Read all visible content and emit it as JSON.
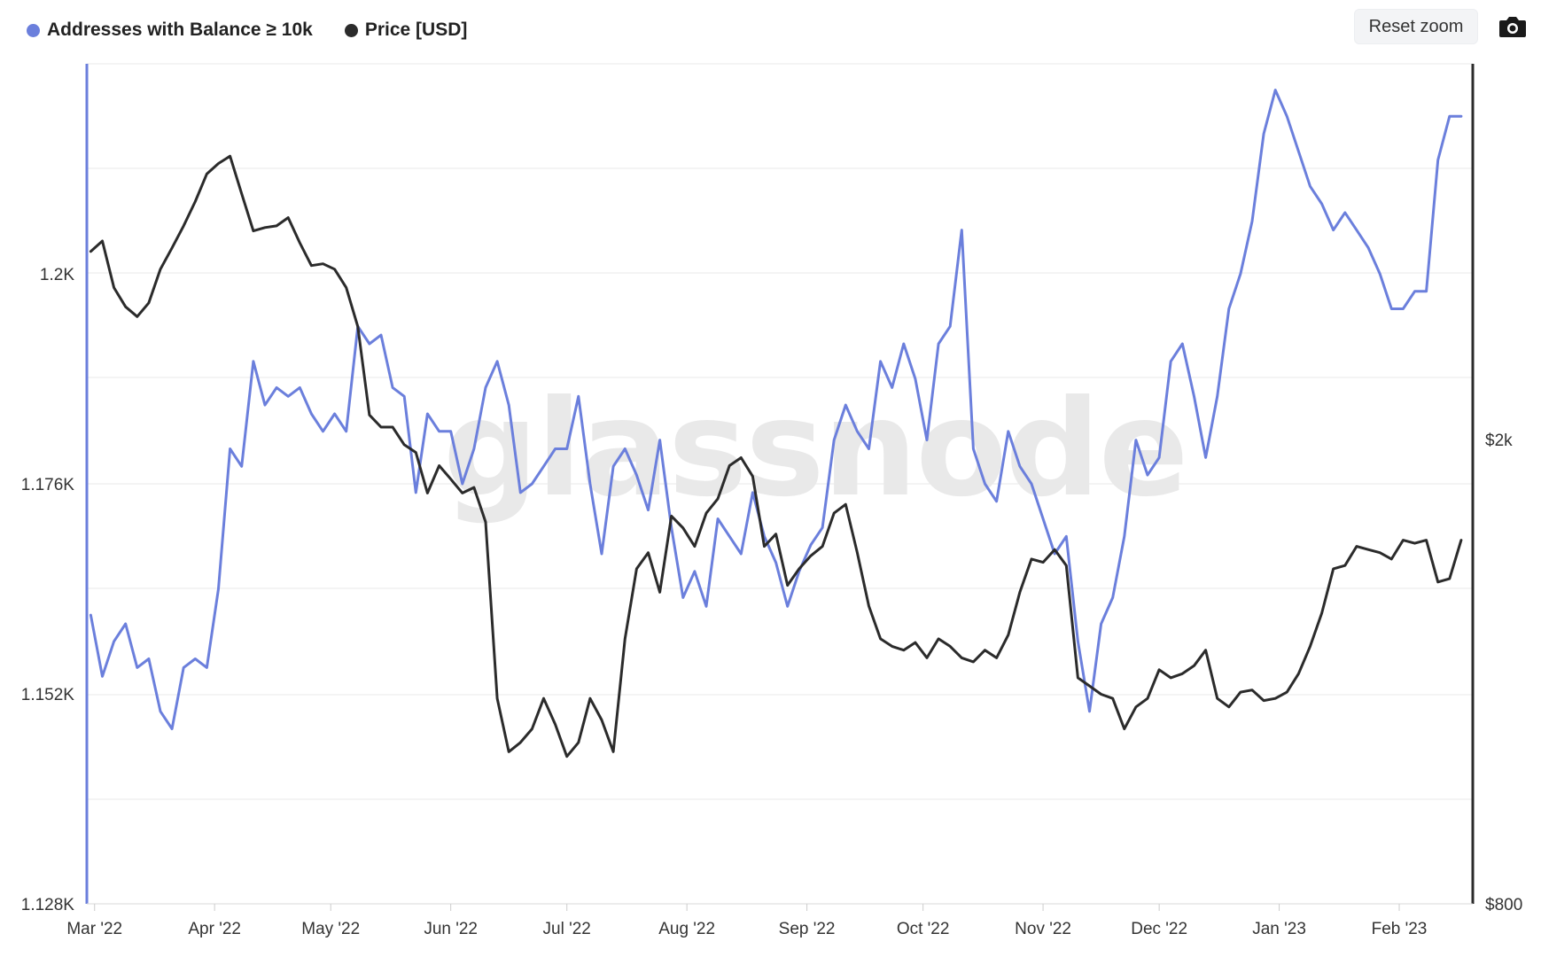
{
  "legend": {
    "series1_label": "Addresses with Balance ≥ 10k",
    "series2_label": "Price [USD]"
  },
  "toolbar": {
    "reset_zoom_label": "Reset zoom",
    "camera_icon": "camera-icon"
  },
  "watermark": "glassnode",
  "colors": {
    "addresses": "#6b7fdc",
    "price": "#2b2b2b",
    "grid": "#e9e9e9",
    "left_axis": "#6b7fdc",
    "right_axis": "#2b2b2b"
  },
  "chart_data": {
    "type": "line",
    "x_axis": {
      "ticks": [
        "Mar '22",
        "Apr '22",
        "May '22",
        "Jun '22",
        "Jul '22",
        "Aug '22",
        "Sep '22",
        "Oct '22",
        "Nov '22",
        "Dec '22",
        "Jan '23",
        "Feb '23"
      ],
      "range": [
        "2022-02-27",
        "2023-02-20"
      ]
    },
    "y_left": {
      "ticks": [
        "1.128K",
        "1.152K",
        "1.176K",
        "1.2K"
      ],
      "tick_values": [
        1128,
        1152,
        1176,
        1200
      ],
      "range": [
        1128,
        1224
      ]
    },
    "y_right": {
      "ticks": [
        "$800",
        "$2k"
      ],
      "tick_values": [
        800,
        2000
      ],
      "scale": "log",
      "range": [
        800,
        4200
      ]
    },
    "series": [
      {
        "name": "Addresses with Balance ≥ 10k",
        "axis": "left",
        "points": [
          [
            "2022-02-28",
            1161
          ],
          [
            "2022-03-03",
            1154
          ],
          [
            "2022-03-06",
            1158
          ],
          [
            "2022-03-09",
            1160
          ],
          [
            "2022-03-12",
            1155
          ],
          [
            "2022-03-15",
            1156
          ],
          [
            "2022-03-18",
            1150
          ],
          [
            "2022-03-21",
            1148
          ],
          [
            "2022-03-24",
            1155
          ],
          [
            "2022-03-27",
            1156
          ],
          [
            "2022-03-30",
            1155
          ],
          [
            "2022-04-02",
            1164
          ],
          [
            "2022-04-05",
            1180
          ],
          [
            "2022-04-08",
            1178
          ],
          [
            "2022-04-11",
            1190
          ],
          [
            "2022-04-14",
            1185
          ],
          [
            "2022-04-17",
            1187
          ],
          [
            "2022-04-20",
            1186
          ],
          [
            "2022-04-23",
            1187
          ],
          [
            "2022-04-26",
            1184
          ],
          [
            "2022-04-29",
            1182
          ],
          [
            "2022-05-02",
            1184
          ],
          [
            "2022-05-05",
            1182
          ],
          [
            "2022-05-08",
            1194
          ],
          [
            "2022-05-11",
            1192
          ],
          [
            "2022-05-14",
            1193
          ],
          [
            "2022-05-17",
            1187
          ],
          [
            "2022-05-20",
            1186
          ],
          [
            "2022-05-23",
            1175
          ],
          [
            "2022-05-26",
            1184
          ],
          [
            "2022-05-29",
            1182
          ],
          [
            "2022-06-01",
            1182
          ],
          [
            "2022-06-04",
            1176
          ],
          [
            "2022-06-07",
            1180
          ],
          [
            "2022-06-10",
            1187
          ],
          [
            "2022-06-13",
            1190
          ],
          [
            "2022-06-16",
            1185
          ],
          [
            "2022-06-19",
            1175
          ],
          [
            "2022-06-22",
            1176
          ],
          [
            "2022-06-25",
            1178
          ],
          [
            "2022-06-28",
            1180
          ],
          [
            "2022-07-01",
            1180
          ],
          [
            "2022-07-04",
            1186
          ],
          [
            "2022-07-07",
            1176
          ],
          [
            "2022-07-10",
            1168
          ],
          [
            "2022-07-13",
            1178
          ],
          [
            "2022-07-16",
            1180
          ],
          [
            "2022-07-19",
            1177
          ],
          [
            "2022-07-22",
            1173
          ],
          [
            "2022-07-25",
            1181
          ],
          [
            "2022-07-28",
            1171
          ],
          [
            "2022-07-31",
            1163
          ],
          [
            "2022-08-03",
            1166
          ],
          [
            "2022-08-06",
            1162
          ],
          [
            "2022-08-09",
            1172
          ],
          [
            "2022-08-12",
            1170
          ],
          [
            "2022-08-15",
            1168
          ],
          [
            "2022-08-18",
            1175
          ],
          [
            "2022-08-21",
            1170
          ],
          [
            "2022-08-24",
            1167
          ],
          [
            "2022-08-27",
            1162
          ],
          [
            "2022-08-30",
            1166
          ],
          [
            "2022-09-02",
            1169
          ],
          [
            "2022-09-05",
            1171
          ],
          [
            "2022-09-08",
            1181
          ],
          [
            "2022-09-11",
            1185
          ],
          [
            "2022-09-14",
            1182
          ],
          [
            "2022-09-17",
            1180
          ],
          [
            "2022-09-20",
            1190
          ],
          [
            "2022-09-23",
            1187
          ],
          [
            "2022-09-26",
            1192
          ],
          [
            "2022-09-29",
            1188
          ],
          [
            "2022-10-02",
            1181
          ],
          [
            "2022-10-05",
            1192
          ],
          [
            "2022-10-08",
            1194
          ],
          [
            "2022-10-11",
            1205
          ],
          [
            "2022-10-14",
            1180
          ],
          [
            "2022-10-17",
            1176
          ],
          [
            "2022-10-20",
            1174
          ],
          [
            "2022-10-23",
            1182
          ],
          [
            "2022-10-26",
            1178
          ],
          [
            "2022-10-29",
            1176
          ],
          [
            "2022-11-01",
            1172
          ],
          [
            "2022-11-04",
            1168
          ],
          [
            "2022-11-07",
            1170
          ],
          [
            "2022-11-10",
            1158
          ],
          [
            "2022-11-13",
            1150
          ],
          [
            "2022-11-16",
            1160
          ],
          [
            "2022-11-19",
            1163
          ],
          [
            "2022-11-22",
            1170
          ],
          [
            "2022-11-25",
            1181
          ],
          [
            "2022-11-28",
            1177
          ],
          [
            "2022-12-01",
            1179
          ],
          [
            "2022-12-04",
            1190
          ],
          [
            "2022-12-07",
            1192
          ],
          [
            "2022-12-10",
            1186
          ],
          [
            "2022-12-13",
            1179
          ],
          [
            "2022-12-16",
            1186
          ],
          [
            "2022-12-19",
            1196
          ],
          [
            "2022-12-22",
            1200
          ],
          [
            "2022-12-25",
            1206
          ],
          [
            "2022-12-28",
            1216
          ],
          [
            "2022-12-31",
            1221
          ],
          [
            "2023-01-03",
            1218
          ],
          [
            "2023-01-06",
            1214
          ],
          [
            "2023-01-09",
            1210
          ],
          [
            "2023-01-12",
            1208
          ],
          [
            "2023-01-15",
            1205
          ],
          [
            "2023-01-18",
            1207
          ],
          [
            "2023-01-21",
            1205
          ],
          [
            "2023-01-24",
            1203
          ],
          [
            "2023-01-27",
            1200
          ],
          [
            "2023-01-30",
            1196
          ],
          [
            "2023-02-02",
            1196
          ],
          [
            "2023-02-05",
            1198
          ],
          [
            "2023-02-08",
            1198
          ],
          [
            "2023-02-11",
            1213
          ],
          [
            "2023-02-14",
            1218
          ],
          [
            "2023-02-17",
            1218
          ]
        ]
      },
      {
        "name": "Price [USD]",
        "axis": "right",
        "points": [
          [
            "2022-02-28",
            2900
          ],
          [
            "2022-03-03",
            2960
          ],
          [
            "2022-03-06",
            2700
          ],
          [
            "2022-03-09",
            2600
          ],
          [
            "2022-03-12",
            2550
          ],
          [
            "2022-03-15",
            2620
          ],
          [
            "2022-03-18",
            2800
          ],
          [
            "2022-03-21",
            2920
          ],
          [
            "2022-03-24",
            3050
          ],
          [
            "2022-03-27",
            3200
          ],
          [
            "2022-03-30",
            3380
          ],
          [
            "2022-04-02",
            3450
          ],
          [
            "2022-04-05",
            3500
          ],
          [
            "2022-04-08",
            3250
          ],
          [
            "2022-04-11",
            3020
          ],
          [
            "2022-04-14",
            3040
          ],
          [
            "2022-04-17",
            3050
          ],
          [
            "2022-04-20",
            3100
          ],
          [
            "2022-04-23",
            2950
          ],
          [
            "2022-04-26",
            2820
          ],
          [
            "2022-04-29",
            2830
          ],
          [
            "2022-05-02",
            2800
          ],
          [
            "2022-05-05",
            2700
          ],
          [
            "2022-05-08",
            2500
          ],
          [
            "2022-05-11",
            2100
          ],
          [
            "2022-05-14",
            2050
          ],
          [
            "2022-05-17",
            2050
          ],
          [
            "2022-05-20",
            1980
          ],
          [
            "2022-05-23",
            1950
          ],
          [
            "2022-05-26",
            1800
          ],
          [
            "2022-05-29",
            1900
          ],
          [
            "2022-06-01",
            1850
          ],
          [
            "2022-06-04",
            1800
          ],
          [
            "2022-06-07",
            1820
          ],
          [
            "2022-06-10",
            1700
          ],
          [
            "2022-06-13",
            1200
          ],
          [
            "2022-06-16",
            1080
          ],
          [
            "2022-06-19",
            1100
          ],
          [
            "2022-06-22",
            1130
          ],
          [
            "2022-06-25",
            1200
          ],
          [
            "2022-06-28",
            1140
          ],
          [
            "2022-07-01",
            1070
          ],
          [
            "2022-07-04",
            1100
          ],
          [
            "2022-07-07",
            1200
          ],
          [
            "2022-07-10",
            1150
          ],
          [
            "2022-07-13",
            1080
          ],
          [
            "2022-07-16",
            1350
          ],
          [
            "2022-07-19",
            1550
          ],
          [
            "2022-07-22",
            1600
          ],
          [
            "2022-07-25",
            1480
          ],
          [
            "2022-07-28",
            1720
          ],
          [
            "2022-07-31",
            1680
          ],
          [
            "2022-08-03",
            1620
          ],
          [
            "2022-08-06",
            1730
          ],
          [
            "2022-08-09",
            1780
          ],
          [
            "2022-08-12",
            1900
          ],
          [
            "2022-08-15",
            1930
          ],
          [
            "2022-08-18",
            1860
          ],
          [
            "2022-08-21",
            1620
          ],
          [
            "2022-08-24",
            1660
          ],
          [
            "2022-08-27",
            1500
          ],
          [
            "2022-08-30",
            1550
          ],
          [
            "2022-09-02",
            1590
          ],
          [
            "2022-09-05",
            1620
          ],
          [
            "2022-09-08",
            1730
          ],
          [
            "2022-09-11",
            1760
          ],
          [
            "2022-09-14",
            1600
          ],
          [
            "2022-09-17",
            1440
          ],
          [
            "2022-09-20",
            1350
          ],
          [
            "2022-09-23",
            1330
          ],
          [
            "2022-09-26",
            1320
          ],
          [
            "2022-09-29",
            1340
          ],
          [
            "2022-10-02",
            1300
          ],
          [
            "2022-10-05",
            1350
          ],
          [
            "2022-10-08",
            1330
          ],
          [
            "2022-10-11",
            1300
          ],
          [
            "2022-10-14",
            1290
          ],
          [
            "2022-10-17",
            1320
          ],
          [
            "2022-10-20",
            1300
          ],
          [
            "2022-10-23",
            1360
          ],
          [
            "2022-10-26",
            1480
          ],
          [
            "2022-10-29",
            1580
          ],
          [
            "2022-11-01",
            1570
          ],
          [
            "2022-11-04",
            1610
          ],
          [
            "2022-11-07",
            1560
          ],
          [
            "2022-11-10",
            1250
          ],
          [
            "2022-11-13",
            1230
          ],
          [
            "2022-11-16",
            1210
          ],
          [
            "2022-11-19",
            1200
          ],
          [
            "2022-11-22",
            1130
          ],
          [
            "2022-11-25",
            1180
          ],
          [
            "2022-11-28",
            1200
          ],
          [
            "2022-12-01",
            1270
          ],
          [
            "2022-12-04",
            1250
          ],
          [
            "2022-12-07",
            1260
          ],
          [
            "2022-12-10",
            1280
          ],
          [
            "2022-12-13",
            1320
          ],
          [
            "2022-12-16",
            1200
          ],
          [
            "2022-12-19",
            1180
          ],
          [
            "2022-12-22",
            1215
          ],
          [
            "2022-12-25",
            1220
          ],
          [
            "2022-12-28",
            1195
          ],
          [
            "2022-12-31",
            1200
          ],
          [
            "2023-01-03",
            1215
          ],
          [
            "2023-01-06",
            1260
          ],
          [
            "2023-01-09",
            1330
          ],
          [
            "2023-01-12",
            1420
          ],
          [
            "2023-01-15",
            1550
          ],
          [
            "2023-01-18",
            1560
          ],
          [
            "2023-01-21",
            1620
          ],
          [
            "2023-01-24",
            1610
          ],
          [
            "2023-01-27",
            1600
          ],
          [
            "2023-01-30",
            1580
          ],
          [
            "2023-02-02",
            1640
          ],
          [
            "2023-02-05",
            1630
          ],
          [
            "2023-02-08",
            1640
          ],
          [
            "2023-02-11",
            1510
          ],
          [
            "2023-02-14",
            1520
          ],
          [
            "2023-02-17",
            1640
          ]
        ]
      }
    ],
    "grid": true,
    "legend_position": "top-left"
  }
}
